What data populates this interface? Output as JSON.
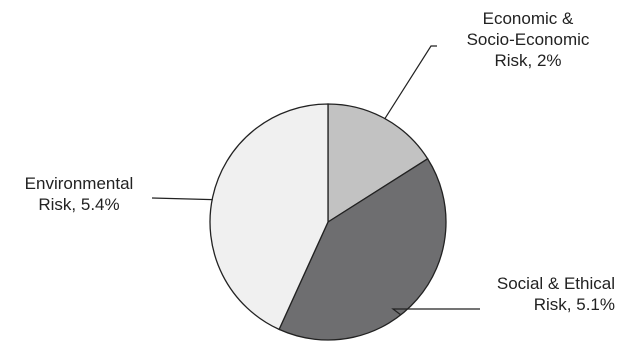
{
  "chart_data": {
    "type": "pie",
    "start_angle_deg": 0,
    "direction": "clockwise",
    "slices": [
      {
        "key": "economic",
        "label": "Economic & Socio-Economic Risk, 2%",
        "label_lines": [
          "Economic &",
          "Socio-Economic",
          "Risk, 2%"
        ],
        "value": 2,
        "color": "#c2c2c2"
      },
      {
        "key": "social",
        "label": "Social & Ethical Risk, 5.1%",
        "label_lines": [
          "Social & Ethical",
          "Risk, 5.1%"
        ],
        "value": 5.1,
        "color": "#6e6e70"
      },
      {
        "key": "environmental",
        "label": "Environmental Risk, 5.4%",
        "label_lines": [
          "Environmental",
          "Risk, 5.4%"
        ],
        "value": 5.4,
        "color": "#f0f0f0"
      }
    ]
  }
}
